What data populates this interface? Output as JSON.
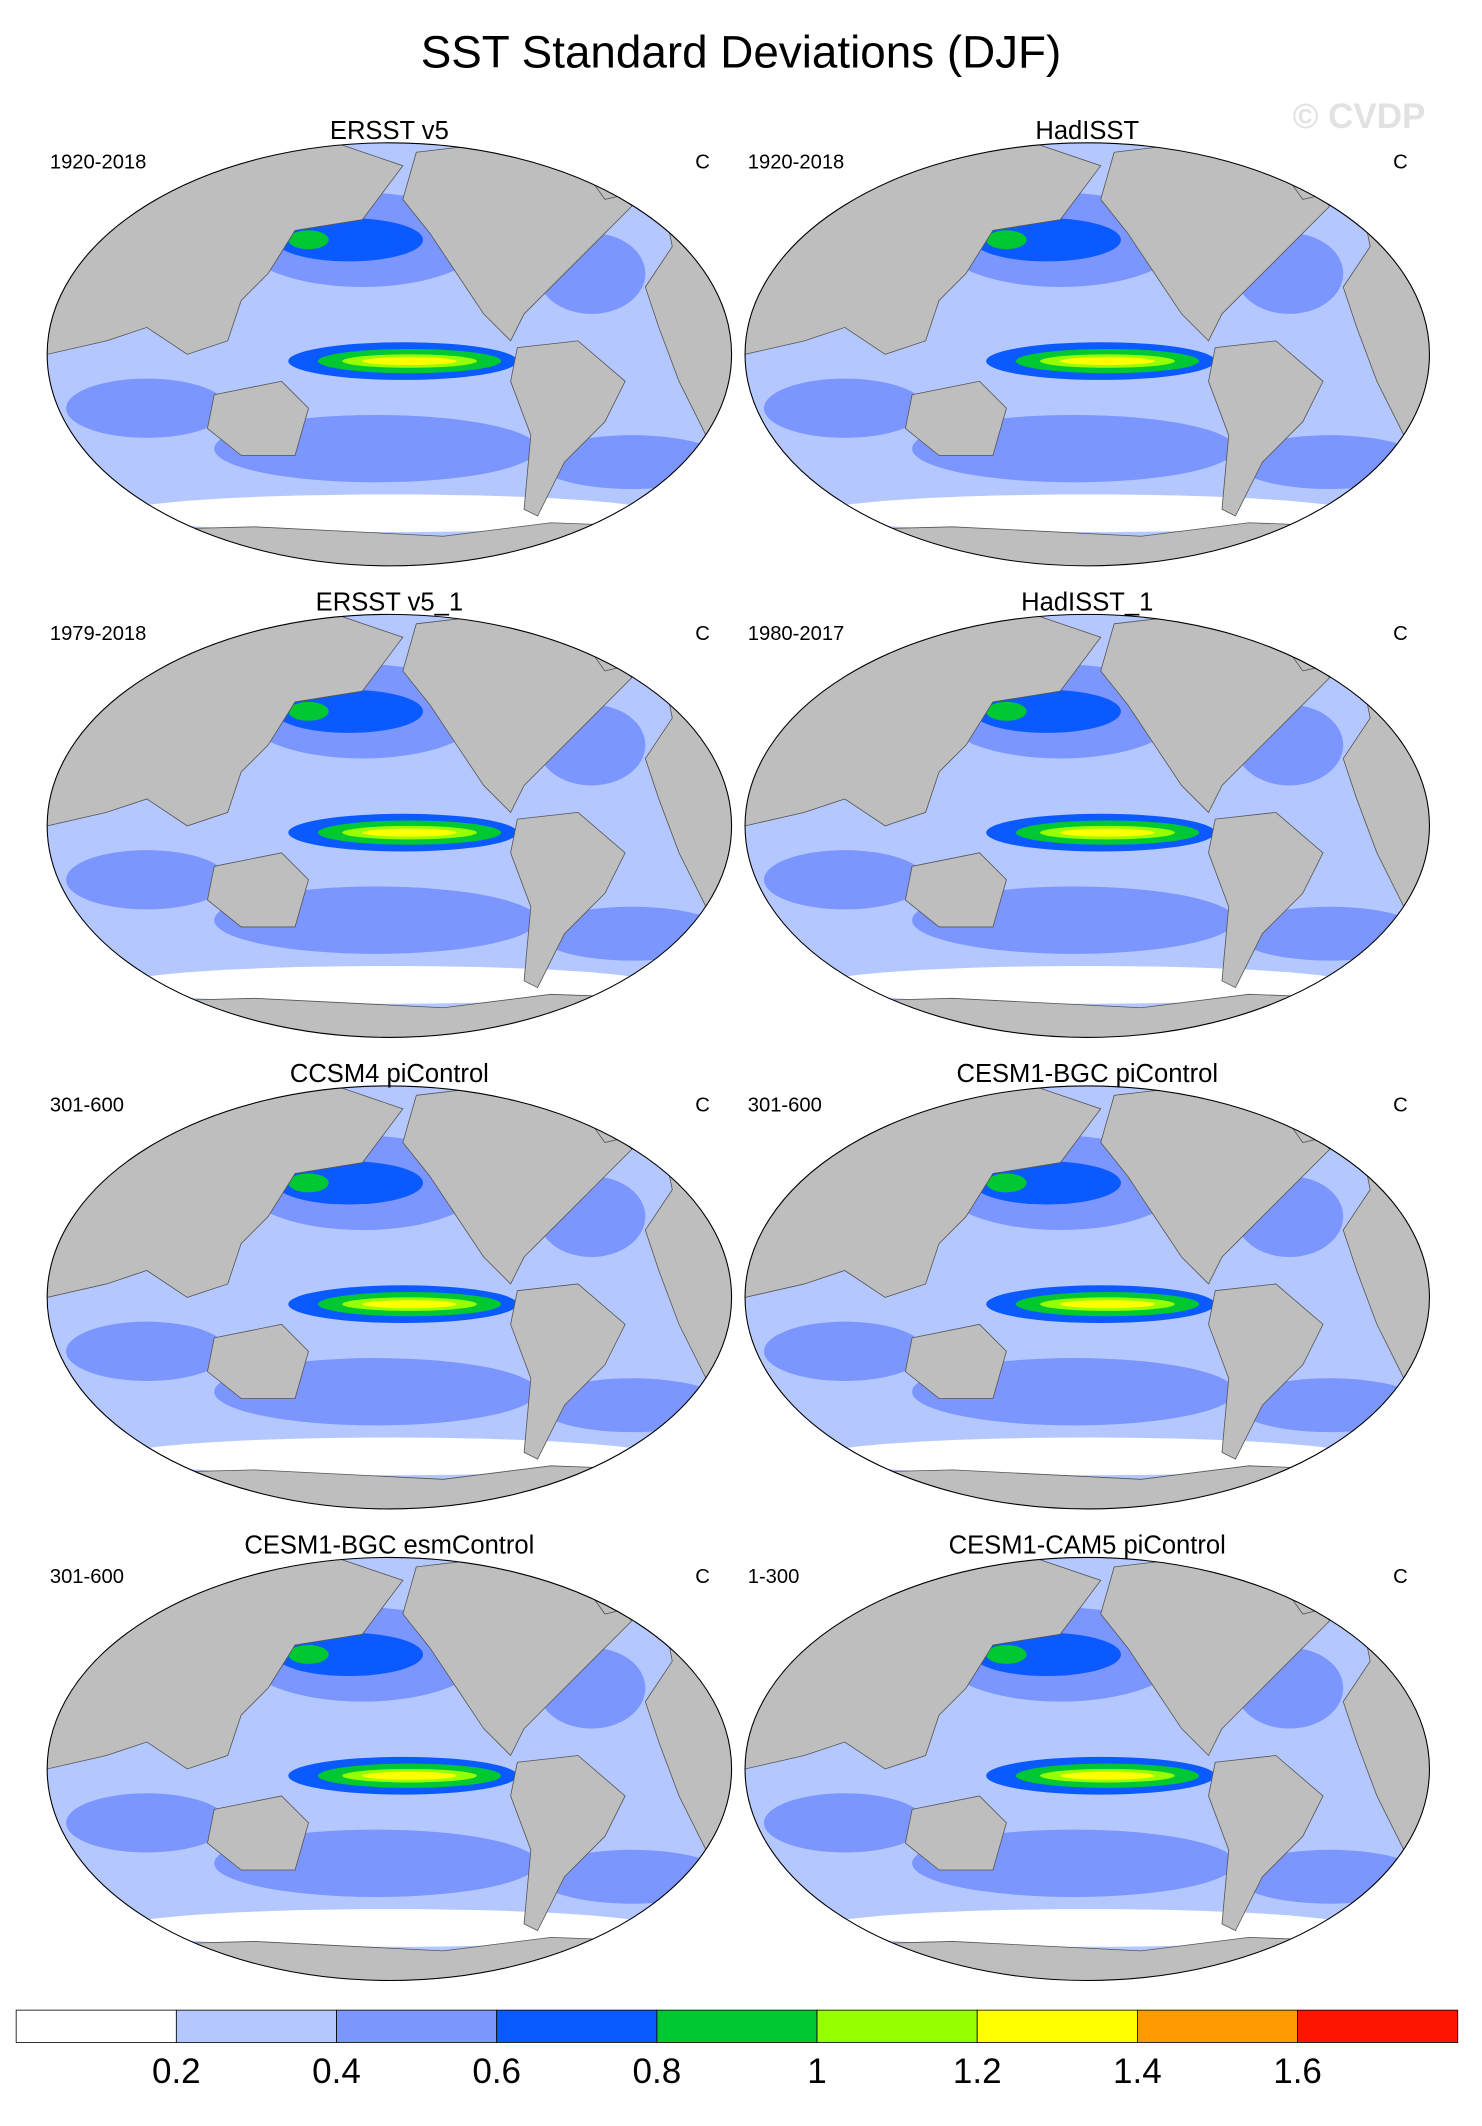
{
  "title": "SST Standard Deviations (DJF)",
  "watermark": "© CVDP",
  "panels": [
    {
      "title": "ERSST v5",
      "period": "1920-2018",
      "units": "C"
    },
    {
      "title": "HadISST",
      "period": "1920-2018",
      "units": "C"
    },
    {
      "title": "ERSST v5_1",
      "period": "1979-2018",
      "units": "C"
    },
    {
      "title": "HadISST_1",
      "period": "1980-2017",
      "units": "C"
    },
    {
      "title": "CCSM4 piControl",
      "period": "301-600",
      "units": "C"
    },
    {
      "title": "CESM1-BGC piControl",
      "period": "301-600",
      "units": "C"
    },
    {
      "title": "CESM1-BGC esmControl",
      "period": "301-600",
      "units": "C"
    },
    {
      "title": "CESM1-CAM5 piControl",
      "period": "1-300",
      "units": "C"
    }
  ],
  "colorbar": {
    "levels": [
      0.2,
      0.4,
      0.6,
      0.8,
      1,
      1.2,
      1.4,
      1.6
    ],
    "colors": [
      "#ffffff",
      "#b4c8ff",
      "#7b96ff",
      "#0a5aff",
      "#00c832",
      "#96ff00",
      "#ffff00",
      "#ff9b00",
      "#ff1400"
    ]
  }
}
